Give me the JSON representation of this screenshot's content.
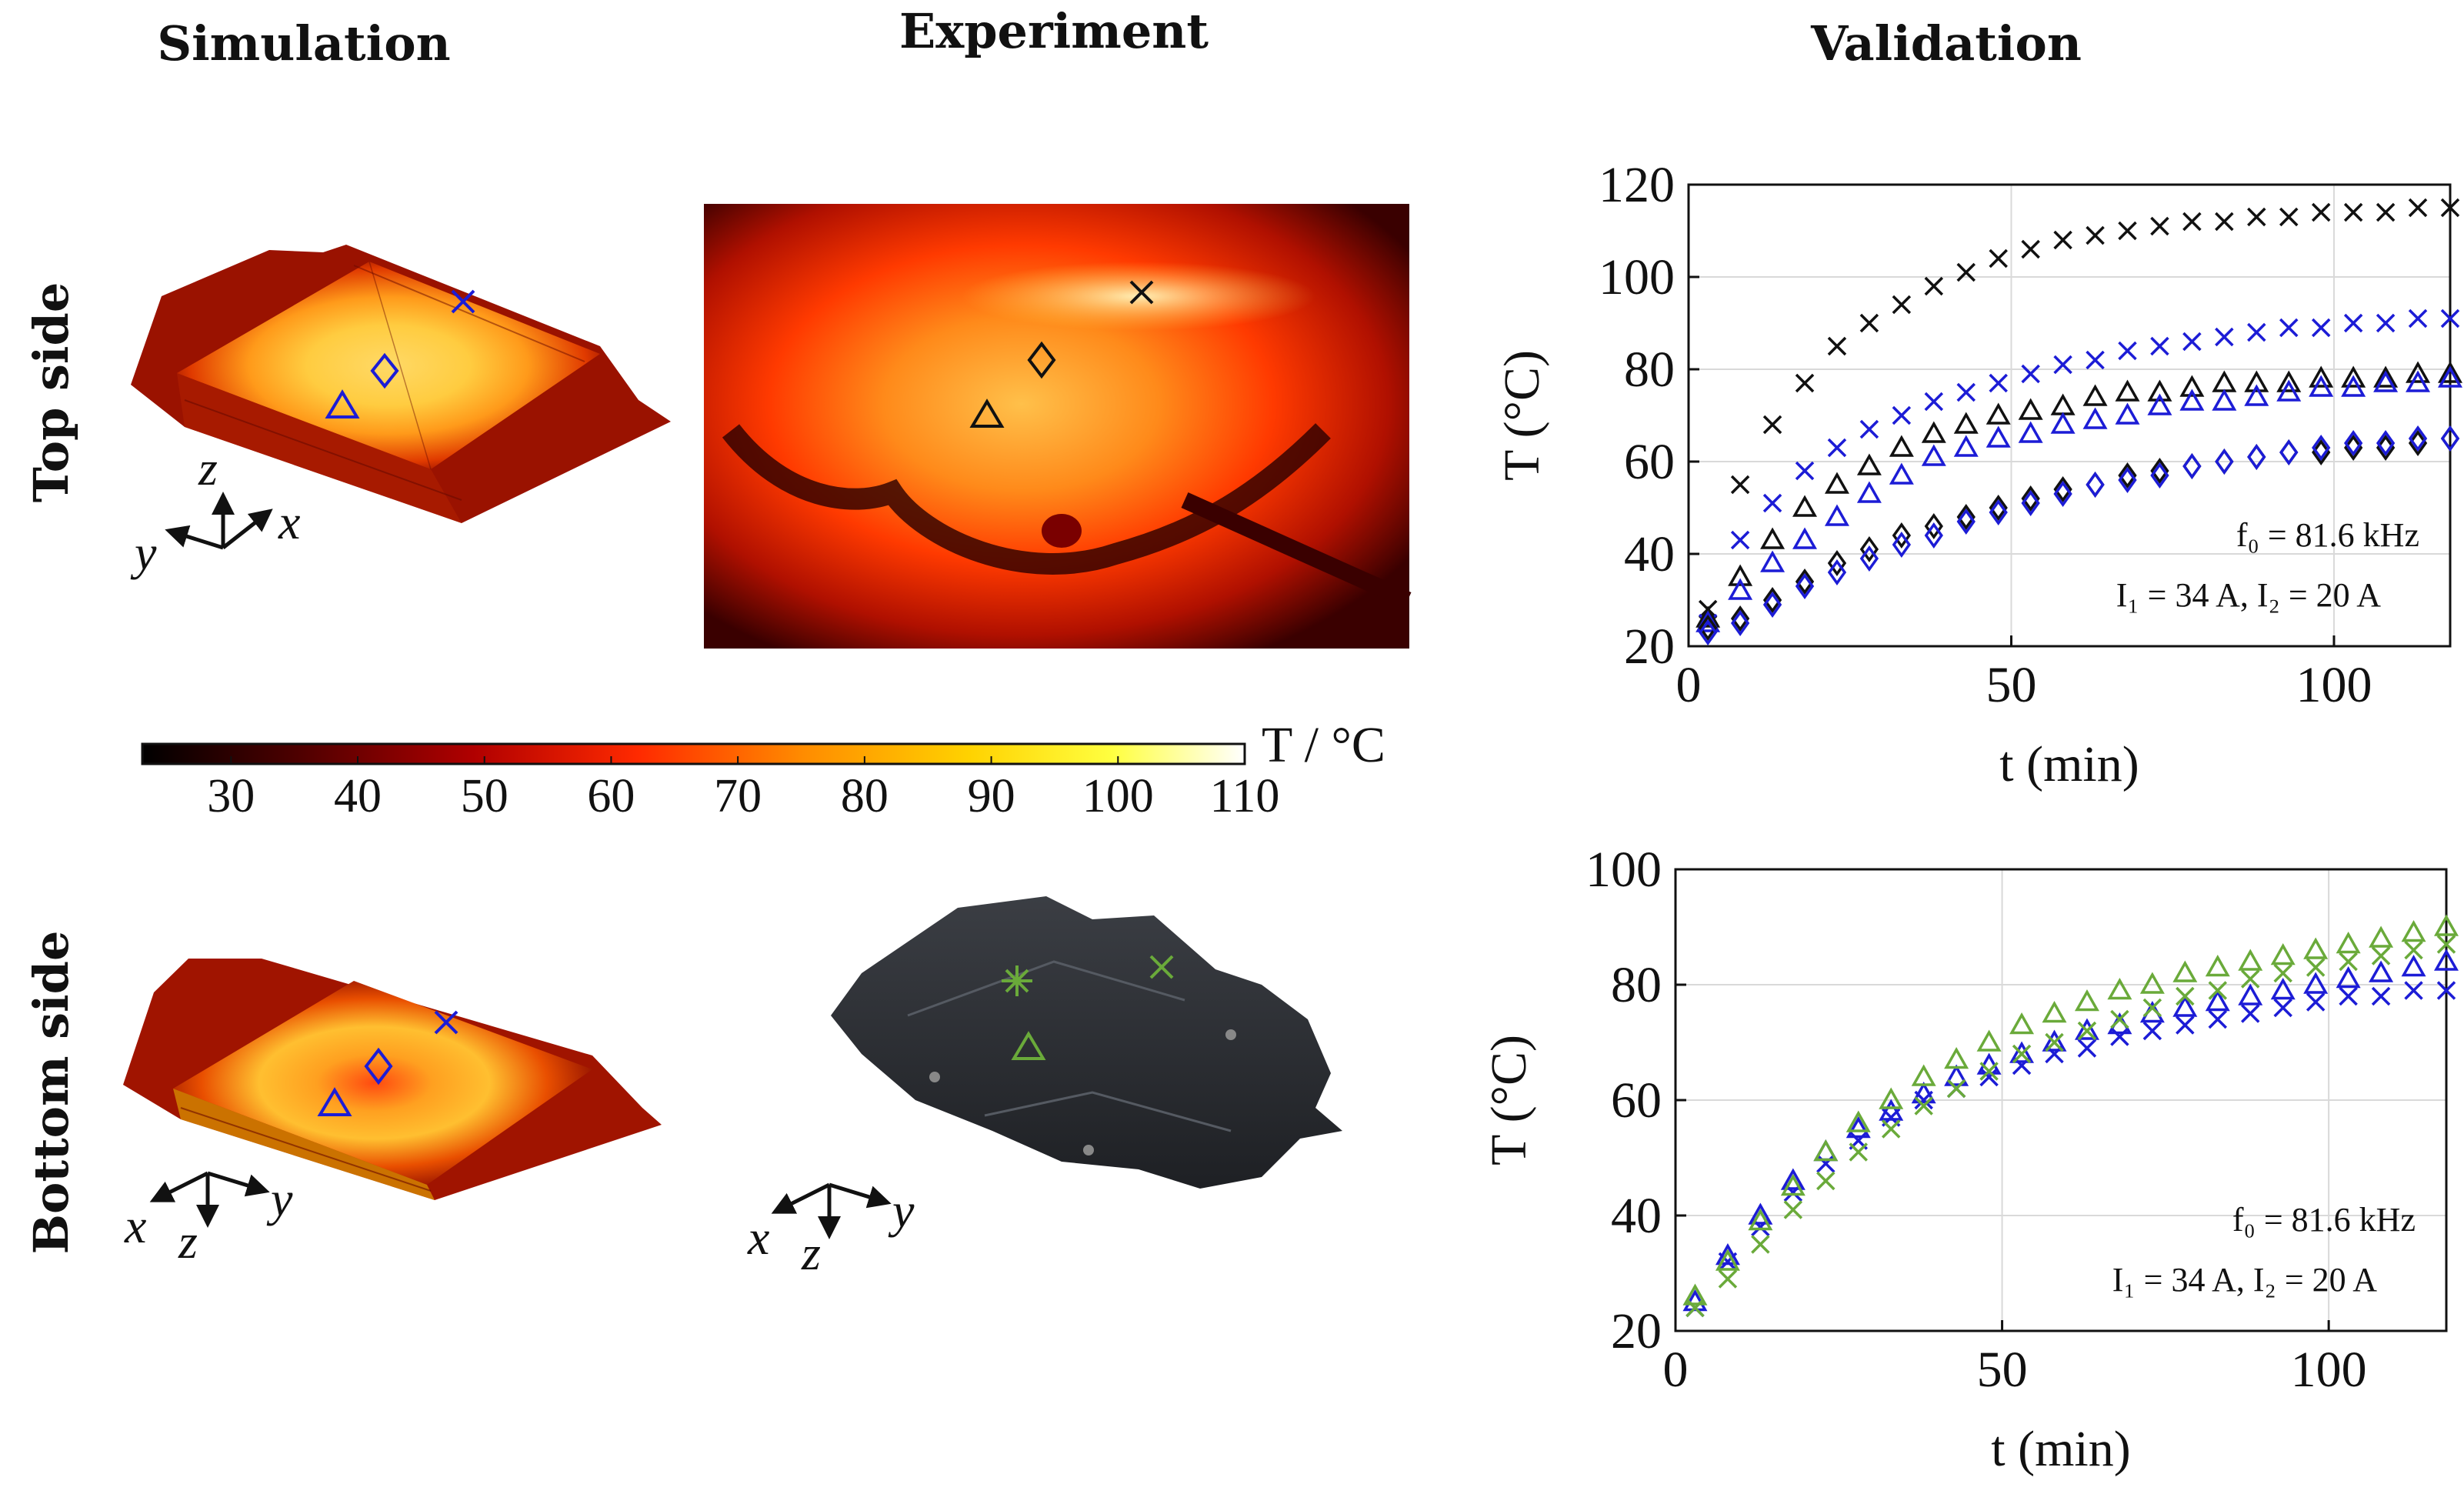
{
  "headers": {
    "simulation": "Simulation",
    "experiment": "Experiment",
    "validation": "Validation",
    "top_side": "Top side",
    "bottom_side": "Bottom side"
  },
  "colorbar": {
    "label": "T / °C",
    "ticks": [
      "30",
      "40",
      "50",
      "60",
      "70",
      "80",
      "90",
      "100",
      "110"
    ],
    "range": [
      23,
      110
    ]
  },
  "axes_triads": {
    "top_sim": {
      "up": "z",
      "right": "x",
      "left": "y"
    },
    "bottom_sim": {
      "left": "x",
      "down": "z",
      "right": "y"
    },
    "bottom_exp": {
      "left": "x",
      "down": "z",
      "right": "y"
    }
  },
  "colors": {
    "black": "#111111",
    "blue": "#1c1cd6",
    "green": "#6aaa3a"
  },
  "chart_data": [
    {
      "type": "scatter",
      "title": "Top side",
      "xlabel": "t (min)",
      "ylabel": "T (°C)",
      "xlim": [
        0,
        118
      ],
      "ylim": [
        20,
        120
      ],
      "xticks": [
        0,
        50,
        100
      ],
      "yticks": [
        20,
        40,
        60,
        80,
        100,
        120
      ],
      "annotation_line1": "f₀ = 81.6 kHz",
      "annotation_line2": "I₁ = 34 A, I₂ = 20 A",
      "x": [
        3,
        8,
        13,
        18,
        23,
        28,
        33,
        38,
        43,
        48,
        53,
        58,
        63,
        68,
        73,
        78,
        83,
        88,
        93,
        98,
        103,
        108,
        113,
        118
      ],
      "series": [
        {
          "name": "sim-cross",
          "marker": "x",
          "color": "black",
          "values": [
            28,
            55,
            68,
            77,
            85,
            90,
            94,
            98,
            101,
            104,
            106,
            108,
            109,
            110,
            111,
            112,
            112,
            113,
            113,
            114,
            114,
            114,
            115,
            115
          ]
        },
        {
          "name": "exp-cross",
          "marker": "x",
          "color": "blue",
          "values": [
            25,
            43,
            51,
            58,
            63,
            67,
            70,
            73,
            75,
            77,
            79,
            81,
            82,
            84,
            85,
            86,
            87,
            88,
            89,
            89,
            90,
            90,
            91,
            91
          ]
        },
        {
          "name": "sim-triangle",
          "marker": "triangle",
          "color": "black",
          "values": [
            26,
            35,
            43,
            50,
            55,
            59,
            63,
            66,
            68,
            70,
            71,
            72,
            74,
            75,
            75,
            76,
            77,
            77,
            77,
            78,
            78,
            78,
            79,
            79
          ]
        },
        {
          "name": "exp-triangle",
          "marker": "triangle",
          "color": "blue",
          "values": [
            25,
            32,
            38,
            43,
            48,
            53,
            57,
            61,
            63,
            65,
            66,
            68,
            69,
            70,
            72,
            73,
            73,
            74,
            75,
            76,
            76,
            77,
            77,
            78
          ]
        },
        {
          "name": "sim-diamond",
          "marker": "diamond",
          "color": "black",
          "values": [
            24,
            26,
            30,
            34,
            38,
            41,
            44,
            46,
            48,
            50,
            52,
            54,
            55,
            57,
            58,
            59,
            60,
            61,
            62,
            62,
            63,
            63,
            64,
            65
          ]
        },
        {
          "name": "exp-diamond",
          "marker": "diamond",
          "color": "blue",
          "values": [
            23,
            25,
            29,
            33,
            36,
            39,
            42,
            44,
            47,
            49,
            51,
            53,
            55,
            56,
            57,
            59,
            60,
            61,
            62,
            63,
            64,
            64,
            65,
            65
          ]
        }
      ]
    },
    {
      "type": "scatter",
      "title": "Bottom side",
      "xlabel": "t (min)",
      "ylabel": "T (°C)",
      "xlim": [
        0,
        118
      ],
      "ylim": [
        20,
        100
      ],
      "xticks": [
        0,
        50,
        100
      ],
      "yticks": [
        20,
        40,
        60,
        80,
        100
      ],
      "annotation_line1": "f₀ = 81.6 kHz",
      "annotation_line2": "I₁ = 34 A, I₂ = 20 A",
      "x": [
        3,
        8,
        13,
        18,
        23,
        28,
        33,
        38,
        43,
        48,
        53,
        58,
        63,
        68,
        73,
        78,
        83,
        88,
        93,
        98,
        103,
        108,
        113,
        118
      ],
      "series": [
        {
          "name": "sim-cross",
          "marker": "x",
          "color": "blue",
          "values": [
            24,
            32,
            38,
            44,
            49,
            53,
            57,
            60,
            62,
            64,
            66,
            68,
            69,
            71,
            72,
            73,
            74,
            75,
            76,
            77,
            78,
            78,
            79,
            79
          ]
        },
        {
          "name": "sim-triangle",
          "marker": "triangle",
          "color": "blue",
          "values": [
            25,
            33,
            40,
            46,
            51,
            55,
            58,
            61,
            64,
            66,
            68,
            70,
            72,
            73,
            75,
            76,
            77,
            78,
            79,
            80,
            81,
            82,
            83,
            84
          ]
        },
        {
          "name": "exp-cross",
          "marker": "x",
          "color": "green",
          "values": [
            24,
            29,
            35,
            41,
            46,
            51,
            55,
            59,
            62,
            65,
            68,
            70,
            72,
            74,
            76,
            78,
            79,
            81,
            82,
            83,
            84,
            85,
            86,
            87
          ]
        },
        {
          "name": "exp-triangle",
          "marker": "triangle",
          "color": "green",
          "values": [
            26,
            32,
            39,
            45,
            51,
            56,
            60,
            64,
            67,
            70,
            73,
            75,
            77,
            79,
            80,
            82,
            83,
            84,
            85,
            86,
            87,
            88,
            89,
            90
          ]
        }
      ]
    }
  ]
}
